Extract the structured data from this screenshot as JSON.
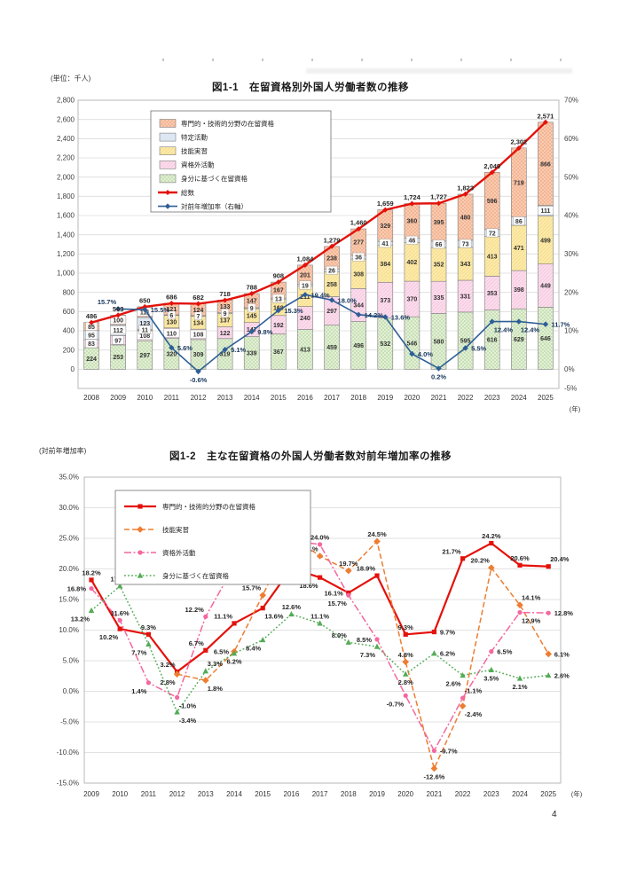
{
  "page": {
    "page_number": "4"
  },
  "chart_data": [
    {
      "type": "bar",
      "stacked": true,
      "title": "図1-1　在留資格別外国人労働者数の推移",
      "unit_label": "(単位：千人)",
      "x_suffix": "(年)",
      "categories": [
        "2008",
        "2009",
        "2010",
        "2011",
        "2012",
        "2013",
        "2014",
        "2015",
        "2016",
        "2017",
        "2018",
        "2019",
        "2020",
        "2021",
        "2022",
        "2023",
        "2024",
        "2025"
      ],
      "ylim_left": [
        -200,
        2800
      ],
      "ytick_left": 200,
      "ylim_right": [
        -5,
        70
      ],
      "right_ticks": [
        70,
        60,
        50,
        40,
        30,
        20,
        10,
        0,
        -5
      ],
      "grid": true,
      "legend_position": "top-left-inside",
      "series": [
        {
          "name": "身分に基づく在留資格",
          "color": "#e7f1dd",
          "hatch": "#b6d89f",
          "hatch_style": "cross",
          "values": [
            224,
            253,
            297,
            320,
            309,
            319,
            339,
            367,
            413,
            459,
            496,
            532,
            546,
            580,
            595,
            616,
            629,
            646
          ]
        },
        {
          "name": "資格外活動",
          "color": "#fbdcec",
          "hatch": "#f2bcd8",
          "hatch_style": "diag",
          "values": [
            83,
            97,
            108,
            110,
            108,
            122,
            147,
            192,
            240,
            297,
            344,
            373,
            370,
            335,
            331,
            353,
            398,
            449
          ]
        },
        {
          "name": "技能実習",
          "color": "#fdeaa6",
          "hatch": "#ecd488",
          "hatch_style": "diag",
          "values": [
            null,
            null,
            11,
            130,
            134,
            137,
            145,
            168,
            211,
            258,
            308,
            384,
            402,
            352,
            343,
            413,
            471,
            499
          ]
        },
        {
          "name": "特定活動",
          "color": "#dde7f3",
          "hatch": "#c3d5ea",
          "hatch_style": "none",
          "values": [
            95,
            112,
            123,
            6,
            7,
            9,
            9,
            13,
            19,
            26,
            36,
            41,
            46,
            66,
            73,
            72,
            86,
            111
          ]
        },
        {
          "name": "専門的・技術的分野の在留資格",
          "color": "#fbceb6",
          "hatch": "#eda881",
          "hatch_style": "cross",
          "values": [
            85,
            100,
            111,
            121,
            124,
            133,
            147,
            167,
            201,
            238,
            277,
            329,
            360,
            395,
            480,
            596,
            719,
            866
          ]
        }
      ],
      "totals": {
        "name": "総数",
        "color": "#e3120b",
        "values": [
          486,
          563,
          650,
          686,
          682,
          718,
          788,
          908,
          1084,
          1279,
          1460,
          1659,
          1724,
          1727,
          1823,
          2049,
          2302,
          2571
        ]
      },
      "growth": {
        "name": "対前年増加率（右軸）",
        "color": "#2e5e96",
        "values": [
          null,
          15.7,
          15.5,
          5.6,
          -0.6,
          5.1,
          9.8,
          15.3,
          19.4,
          18.0,
          14.2,
          13.6,
          4.0,
          0.2,
          5.5,
          12.4,
          12.4,
          11.7
        ],
        "label_pos": [
          null,
          "al",
          "r",
          "r",
          "b",
          "r",
          "r",
          "r",
          "r",
          "r",
          "r",
          "r",
          "r",
          "b",
          "r",
          "br",
          "br",
          "r"
        ]
      },
      "legend_order": [
        "専門的・技術的分野の在留資格",
        "特定活動",
        "技能実習",
        "資格外活動",
        "身分に基づく在留資格",
        "総数",
        "対前年増加率（右軸）"
      ]
    },
    {
      "type": "line",
      "title": "図1-2　主な在留資格の外国人労働者数対前年増加率の推移",
      "axis_label": "(対前年増加率)",
      "x_suffix": "(年)",
      "categories": [
        "2009",
        "2010",
        "2011",
        "2012",
        "2013",
        "2014",
        "2015",
        "2016",
        "2017",
        "2018",
        "2019",
        "2020",
        "2021",
        "2022",
        "2023",
        "2024",
        "2025"
      ],
      "ylim": [
        -15,
        35
      ],
      "ytick": 5,
      "grid": true,
      "legend_position": "top-left-inside",
      "series": [
        {
          "name": "専門的・技術的分野の在留資格",
          "color": "#e3120b",
          "style": "solid",
          "marker": "square",
          "values": [
            18.2,
            10.2,
            9.3,
            3.2,
            6.7,
            11.1,
            13.6,
            20.1,
            18.6,
            16.1,
            18.9,
            9.3,
            9.7,
            21.7,
            24.2,
            20.6,
            20.4
          ],
          "label_pos": [
            "a",
            "bl",
            "a",
            "al",
            "al",
            "al",
            "br",
            "l",
            "bl",
            "l",
            "al",
            "a",
            "r",
            "al",
            "a",
            "a",
            "ar"
          ]
        },
        {
          "name": "技能実習",
          "color": "#ed7d31",
          "style": "dashed",
          "marker": "diamond",
          "values": [
            null,
            null,
            null,
            2.8,
            1.8,
            6.5,
            15.7,
            25.4,
            22.1,
            19.7,
            24.5,
            4.8,
            -12.6,
            -2.4,
            20.2,
            14.1,
            6.1
          ],
          "label_pos": [
            null,
            null,
            null,
            "bl",
            "br",
            "l",
            "al",
            "a",
            "al",
            "a",
            "a",
            "a",
            "b",
            "br",
            "al",
            "ar",
            "r"
          ]
        },
        {
          "name": "資格外活動",
          "color": "#f4679f",
          "style": "dashdot",
          "marker": "circle",
          "values": [
            16.8,
            11.6,
            1.4,
            -1.0,
            12.2,
            20.5,
            31.1,
            24.6,
            24.0,
            15.7,
            8.5,
            -0.7,
            -9.7,
            -1.1,
            6.5,
            12.9,
            12.8
          ],
          "label_pos": [
            "l",
            "a",
            "bl",
            "br",
            "al",
            "al",
            "a",
            "bl",
            "a",
            "bl",
            "l",
            "bl",
            "r",
            "ar",
            "r",
            "br",
            "r"
          ]
        },
        {
          "name": "身分に基づく在留資格",
          "color": "#54ab57",
          "style": "dotted",
          "marker": "triangle",
          "values": [
            13.2,
            17.2,
            7.7,
            -3.4,
            3.3,
            6.2,
            8.4,
            12.6,
            11.1,
            8.0,
            7.3,
            2.8,
            6.2,
            2.6,
            3.5,
            2.1,
            2.6
          ],
          "label_pos": [
            "bl",
            "a",
            "bl",
            "br",
            "ar",
            "b",
            "bl",
            "a",
            "a",
            "al",
            "bl",
            "b",
            "r",
            "bl",
            "b",
            "b",
            "r"
          ]
        }
      ],
      "legend_order": [
        "専門的・技術的分野の在留資格",
        "技能実習",
        "資格外活動",
        "身分に基づく在留資格"
      ]
    }
  ]
}
